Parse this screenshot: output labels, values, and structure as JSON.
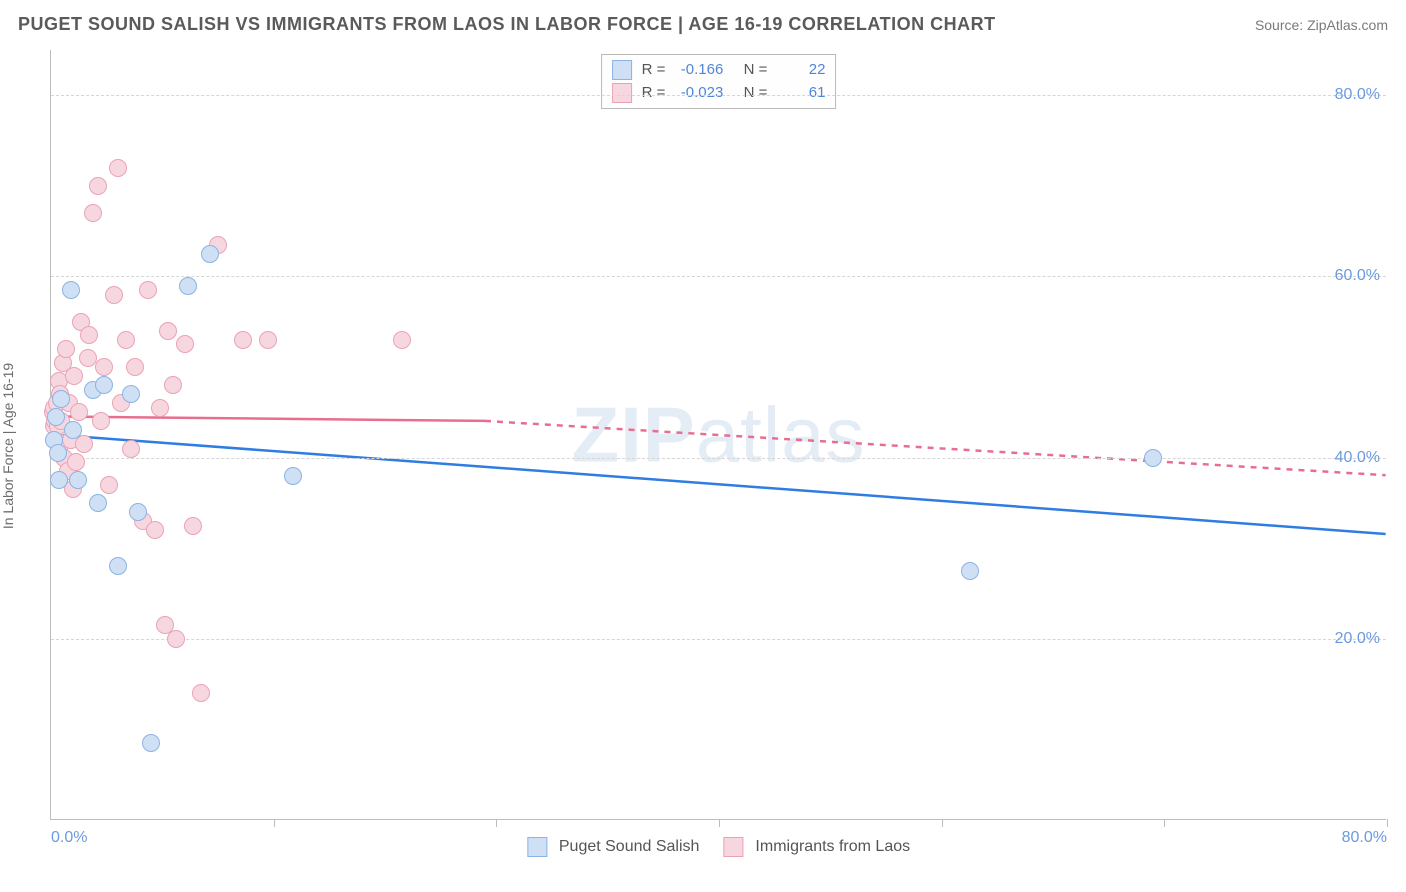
{
  "title": "PUGET SOUND SALISH VS IMMIGRANTS FROM LAOS IN LABOR FORCE | AGE 16-19 CORRELATION CHART",
  "source": "Source: ZipAtlas.com",
  "ylabel": "In Labor Force | Age 16-19",
  "watermark_bold": "ZIP",
  "watermark_light": "atlas",
  "chart": {
    "type": "scatter-correlation",
    "background_color": "#ffffff",
    "grid_color": "#d6d6d6",
    "axis_color": "#bdbdbd",
    "tick_label_color": "#6b9ae0",
    "label_color": "#6d6d6d",
    "title_color": "#5a5a5a",
    "xlim": [
      0,
      80
    ],
    "ylim": [
      0,
      85
    ],
    "y_ticks": [
      20,
      40,
      60,
      80
    ],
    "y_tick_labels": [
      "20.0%",
      "40.0%",
      "60.0%",
      "80.0%"
    ],
    "x_minor_ticks": [
      13.33,
      26.67,
      40,
      53.33,
      66.67,
      80
    ],
    "x_tick_labels": [
      {
        "pos": 0,
        "label": "0.0%"
      },
      {
        "pos": 80,
        "label": "80.0%"
      }
    ],
    "marker_radius": 9,
    "marker_stroke_width": 1.5,
    "line_width": 2.5,
    "series_a": {
      "name": "Puget Sound Salish",
      "fill": "#cfe0f5",
      "stroke": "#8bb3e4",
      "line_color": "#2f7de1",
      "r_value": "-0.166",
      "n_value": "22",
      "trend_solid": {
        "x1": 0,
        "y1": 42.5,
        "x2": 80,
        "y2": 31.5
      },
      "points": [
        [
          0.2,
          42.0
        ],
        [
          0.3,
          44.5
        ],
        [
          0.4,
          40.5
        ],
        [
          0.5,
          37.5
        ],
        [
          0.6,
          46.5
        ],
        [
          1.2,
          58.5
        ],
        [
          1.3,
          43.0
        ],
        [
          1.6,
          37.5
        ],
        [
          2.5,
          47.5
        ],
        [
          2.8,
          35.0
        ],
        [
          3.2,
          48.0
        ],
        [
          4.0,
          28.0
        ],
        [
          4.8,
          47.0
        ],
        [
          5.2,
          34.0
        ],
        [
          6.0,
          8.5
        ],
        [
          8.2,
          59.0
        ],
        [
          9.5,
          62.5
        ],
        [
          14.5,
          38.0
        ],
        [
          55.0,
          27.5
        ],
        [
          66.0,
          40.0
        ]
      ]
    },
    "series_b": {
      "name": "Immigrants from Laos",
      "fill": "#f7d7df",
      "stroke": "#eaa3b5",
      "line_color": "#e86e8f",
      "r_value": "-0.023",
      "n_value": "61",
      "trend_solid": {
        "x1": 0,
        "y1": 44.5,
        "x2": 26,
        "y2": 44.0
      },
      "trend_dashed": {
        "x1": 26,
        "y1": 44.0,
        "x2": 80,
        "y2": 38.0
      },
      "points": [
        [
          0.1,
          45.0
        ],
        [
          0.15,
          43.5
        ],
        [
          0.2,
          45.5
        ],
        [
          0.25,
          44.0
        ],
        [
          0.3,
          42.0
        ],
        [
          0.35,
          46.0
        ],
        [
          0.4,
          43.5
        ],
        [
          0.45,
          48.5
        ],
        [
          0.5,
          41.0
        ],
        [
          0.55,
          47.0
        ],
        [
          0.6,
          44.0
        ],
        [
          0.7,
          50.5
        ],
        [
          0.8,
          40.0
        ],
        [
          0.9,
          52.0
        ],
        [
          1.0,
          38.5
        ],
        [
          1.1,
          46.0
        ],
        [
          1.2,
          42.0
        ],
        [
          1.3,
          36.5
        ],
        [
          1.4,
          49.0
        ],
        [
          1.5,
          39.5
        ],
        [
          1.7,
          45.0
        ],
        [
          1.8,
          55.0
        ],
        [
          2.0,
          41.5
        ],
        [
          2.2,
          51.0
        ],
        [
          2.3,
          53.5
        ],
        [
          2.5,
          67.0
        ],
        [
          2.8,
          70.0
        ],
        [
          3.0,
          44.0
        ],
        [
          3.2,
          50.0
        ],
        [
          3.5,
          37.0
        ],
        [
          3.8,
          58.0
        ],
        [
          4.0,
          72.0
        ],
        [
          4.2,
          46.0
        ],
        [
          4.5,
          53.0
        ],
        [
          4.8,
          41.0
        ],
        [
          5.0,
          50.0
        ],
        [
          5.5,
          33.0
        ],
        [
          5.8,
          58.5
        ],
        [
          6.2,
          32.0
        ],
        [
          6.5,
          45.5
        ],
        [
          6.8,
          21.5
        ],
        [
          7.0,
          54.0
        ],
        [
          7.3,
          48.0
        ],
        [
          7.5,
          20.0
        ],
        [
          8.0,
          52.5
        ],
        [
          8.5,
          32.5
        ],
        [
          9.0,
          14.0
        ],
        [
          10.0,
          63.5
        ],
        [
          11.5,
          53.0
        ],
        [
          13.0,
          53.0
        ],
        [
          21.0,
          53.0
        ]
      ]
    }
  },
  "legend_top": {
    "r_label": "R  =",
    "n_label": "N  ="
  },
  "legend_bottom": {
    "a_label": "Puget Sound Salish",
    "b_label": "Immigrants from Laos"
  }
}
